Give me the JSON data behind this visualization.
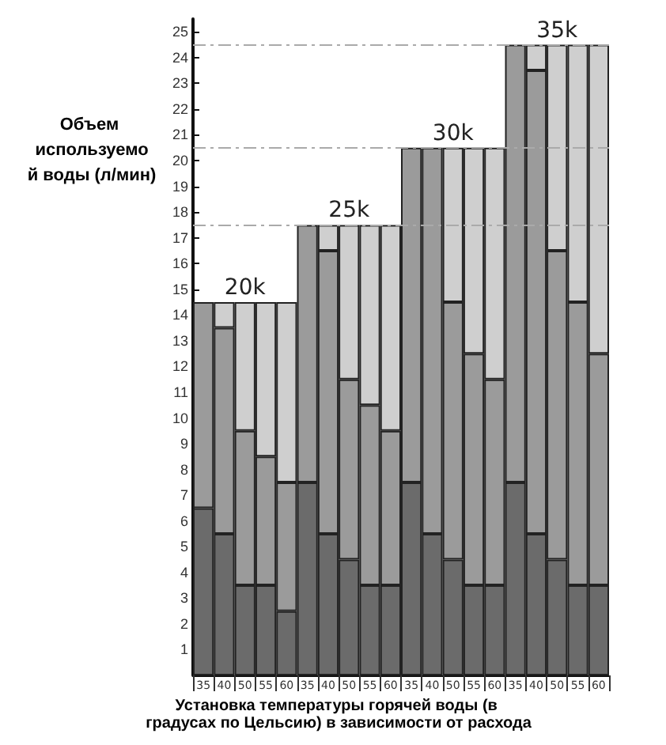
{
  "chart_data": {
    "type": "bar",
    "stacked": true,
    "xlabel": "Установка температуры горячей воды (в градусах по Цельсию) в зависимости от расхода",
    "ylabel": "Объем используемой воды (л/мин)",
    "categories": [
      "35",
      "40",
      "50",
      "55",
      "60",
      "35",
      "40",
      "50",
      "55",
      "60",
      "35",
      "40",
      "50",
      "55",
      "60",
      "35",
      "40",
      "50",
      "55",
      "60"
    ],
    "series": [
      {
        "color": "#6b6b6b",
        "values": [
          6.5,
          5.5,
          3.5,
          3.5,
          2.5,
          7.5,
          5.5,
          4.5,
          3.5,
          3.5,
          7.5,
          5.5,
          4.5,
          3.5,
          3.5,
          7.5,
          5.5,
          4.5,
          3.5,
          3.5
        ]
      },
      {
        "color": "#9b9b9b",
        "values": [
          8,
          8,
          6,
          5,
          5,
          10,
          11,
          7,
          7,
          6,
          13,
          15,
          10,
          9,
          8,
          17,
          18,
          12,
          11,
          9
        ]
      },
      {
        "color": "#cfcfcf",
        "values": [
          null,
          1,
          5,
          6,
          7,
          null,
          1,
          6,
          7,
          8,
          null,
          null,
          6,
          8,
          9,
          null,
          1,
          8,
          10,
          12
        ]
      }
    ],
    "ylim": [
      0,
      25.5
    ],
    "yticks": [
      1,
      2,
      3,
      4,
      5,
      6,
      7,
      8,
      9,
      10,
      11,
      12,
      13,
      14,
      15,
      16,
      17,
      18,
      19,
      20,
      21,
      22,
      23,
      24,
      25
    ],
    "annotations": [
      "20k",
      "25k",
      "30k",
      "35k"
    ],
    "ref_lines": [
      {
        "axis": "y",
        "value": 17.5,
        "color": "#aaaaaa",
        "line_style": "dashed"
      },
      {
        "axis": "y",
        "value": 20.5,
        "color": "#aaaaaa",
        "line_style": "dashed"
      },
      {
        "axis": "y",
        "value": 24.5,
        "color": "#aaaaaa",
        "line_style": "dashed"
      }
    ],
    "grid": false
  }
}
